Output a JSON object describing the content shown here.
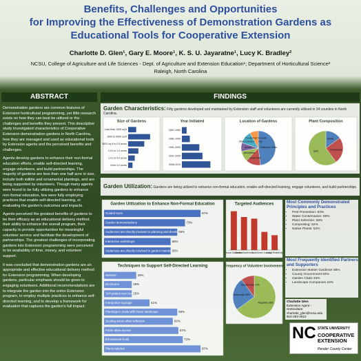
{
  "header": {
    "title": [
      "Benefits, Challenges and Opportunities",
      "for Improving the Effectiveness of Demonstration Gardens as",
      "Educational Tools for Cooperative Extension"
    ],
    "authors": "Charlotte D. Glen¹, Gary E. Moore¹, K. S. U. Jayaratne¹, Lucy K. Bradley²",
    "affiliation": "NCSU, College of Agriculture and Life Sciences - Dept. of Agriculture and Extension Education¹; Department of Horticultural Science²",
    "location": "Raleigh, North Carolina"
  },
  "abstract": {
    "heading": "ABSTRACT",
    "paragraphs": [
      "Demonstration gardens are common features of Extension horticultural programming, yet little research exists on how they can best be utilized or the challenges and benefits they present. This descriptive study investigated characteristics of Cooperative Extension demonstration gardens in North Carolina, how they are managed and used as educational tools by Extension agents and the perceived benefits and challenges.",
      "Agents develop gardens to enhance their non-formal education efforts, enable self-directed learning, engage volunteers, and build partnerships. The majority of gardens are less than one half acre in size, include both edible and ornamental plantings, and are being supported by volunteers. Though many agents were found to be fully utilizing gardens to enhance non-formal education, few were fully employing practices that enable self-directed learning, or evaluating the garden's outcomes and impacts.",
      "Agents perceived the greatest benefits of gardens to be their efficacy as an educational delivery method, their ability to enhance the overall program, their capacity to provide opportunities for meaningful volunteer service and facilitate the development of partnerships. The greatest challenges of incorporating gardens into Extension programming were perceived to be availability of time, money, and volunteer support.",
      "It was concluded that demonstration gardens are an appropriate and effective educational delivery method for Extension programming. When developing gardens, particular emphasis should be given to engaging volunteers. Additional recommendations are to integrate the garden into the entire Extension program, to employ multiple practices to enhance self-directed learning, and to develop a framework for evaluation that captures the garden's full impact."
    ]
  },
  "findings": {
    "heading": "FINDINGS",
    "characteristics": {
      "label": "Garden Characteristics:",
      "text": "Fifty gardens developed and maintained by Extension staff and volunteers are currently utilized in 34 counties in North Carolina.",
      "size": {
        "type": "bar",
        "orientation": "horizontal",
        "title": "Size of Gardens",
        "color": "#2f5597",
        "categories": [
          "Less than 1000 sq ft",
          "1000 to 5000 sq ft",
          "5001 sq ft to 0.5 acres",
          "0.51 to 1.0 acres",
          "1.01 to 4.0 acres",
          "Over 4.0 acres"
        ],
        "values": [
          11,
          30,
          22,
          14,
          9,
          6
        ],
        "xlim": [
          0,
          32
        ]
      },
      "year": {
        "type": "bar",
        "orientation": "horizontal",
        "title": "Year Initiated",
        "color": "#2f5597",
        "categories": [
          "1957-1980",
          "1981-1990",
          "1991-2000",
          "2001-2005",
          "2006-2010"
        ],
        "values": [
          6,
          10,
          22,
          26,
          36
        ],
        "xlim": [
          0,
          40
        ]
      },
      "location": {
        "type": "pie",
        "title": "Location of Gardens",
        "categories": [
          "Extension Office",
          "Public Park",
          "Arboretum",
          "School",
          "Other County Property",
          "County Fair Grounds"
        ],
        "values": [
          48,
          14,
          10,
          8,
          12,
          8
        ],
        "colors": [
          "#4f81bd",
          "#c0504d",
          "#9bbb59",
          "#8064a2",
          "#4bacc6",
          "#f79646"
        ]
      },
      "plants": {
        "type": "pie",
        "title": "Plant Composition",
        "categories": [
          "Edible",
          "Ornamental",
          "Both"
        ],
        "values": [
          15,
          25,
          60
        ],
        "colors": [
          "#4f81bd",
          "#c0504d",
          "#9bbb59"
        ]
      }
    },
    "utilization": {
      "label": "Garden Utilization:",
      "text": "Gardens are being utilized to enhance non-formal education, enable self-directed learning, engage volunteers, and build partnerships.",
      "nonformal": {
        "type": "bar",
        "orientation": "horizontal",
        "label_position": "inside",
        "title": "Garden Utilization to Enhance Non-Formal Education",
        "color": "#4a72c0",
        "categories": [
          "Guided tours",
          "Garden demonstrations",
          "Audiences are directly involved in planning and development",
          "Interactive workshops",
          "Audiences are directly involved in garden maintenance"
        ],
        "values": [
          87,
          73,
          66,
          60,
          60
        ],
        "value_labels": [
          "87%",
          "73%",
          "66%",
          "60%",
          "60%"
        ],
        "xlim": [
          0,
          100
        ]
      },
      "techniques": {
        "type": "bar",
        "orientation": "horizontal",
        "label_position": "inside",
        "title": "Techniques to Support Self-Directed Learning",
        "color": "#6f93d6",
        "categories": [
          "Website",
          "Brochures",
          "Self-guided tour brochure",
          "Interpretive signage",
          "Plantings in scale with home landscape",
          "Seating areas allow reflection",
          "Paths allow access",
          "Educational kiosk",
          "Plants labeled"
        ],
        "values": [
          29,
          25,
          25,
          41,
          66,
          62,
          67,
          71,
          87
        ],
        "value_labels": [
          "29%",
          "25%",
          "25%",
          "41%",
          "66%",
          "62%",
          "67%",
          "71%",
          "87%"
        ],
        "xlim": [
          0,
          100
        ]
      },
      "audiences": {
        "type": "bar",
        "orientation": "vertical",
        "title": "Targeted Audiences",
        "color": "#c0392b",
        "categories": [
          "Home Gardeners",
          "Master Gardeners",
          "Youth",
          "Green Industry",
          "Local Residents"
        ],
        "values": [
          94,
          80,
          76,
          44,
          36
        ],
        "ylim": [
          0,
          100
        ]
      },
      "frequency": {
        "type": "pie",
        "title": "Frequency of Volunteer Involvement",
        "categories": [
          "Regularly",
          "Seasonally",
          "Occasionally"
        ],
        "values": [
          65,
          25,
          10
        ],
        "value_labels": [
          "65%",
          "25%",
          "10%"
        ],
        "colors": [
          "#9bbb59",
          "#4f81bd",
          "#c0504d"
        ]
      }
    },
    "principles": {
      "heading": "Most Commonly Demonstrated Principles and Practices",
      "items": [
        "Pest Prevention: 83%",
        "Water Conservation: 59%",
        "Plant Selection: 59%",
        "Composting: 52%",
        "Native Plants: 52%"
      ]
    },
    "partners": {
      "heading": "Most Frequently Identified Partners and Supporters",
      "items": [
        "Extension Master Gardener 88%",
        "County Government 83%",
        "Garden Clubs 34%",
        "Landscape Companies 34%"
      ]
    },
    "contact": {
      "name": "Charlotte Glen",
      "role": "Extension Agent - Horticulture",
      "email": "charlotte_glen@ncsu.edu",
      "phone": "910-253-2610"
    },
    "logo": {
      "mark": "NC",
      "university": "STATE UNIVERSITY",
      "program": "COOPERATIVE EXTENSION",
      "center": "Pender County Center"
    }
  }
}
